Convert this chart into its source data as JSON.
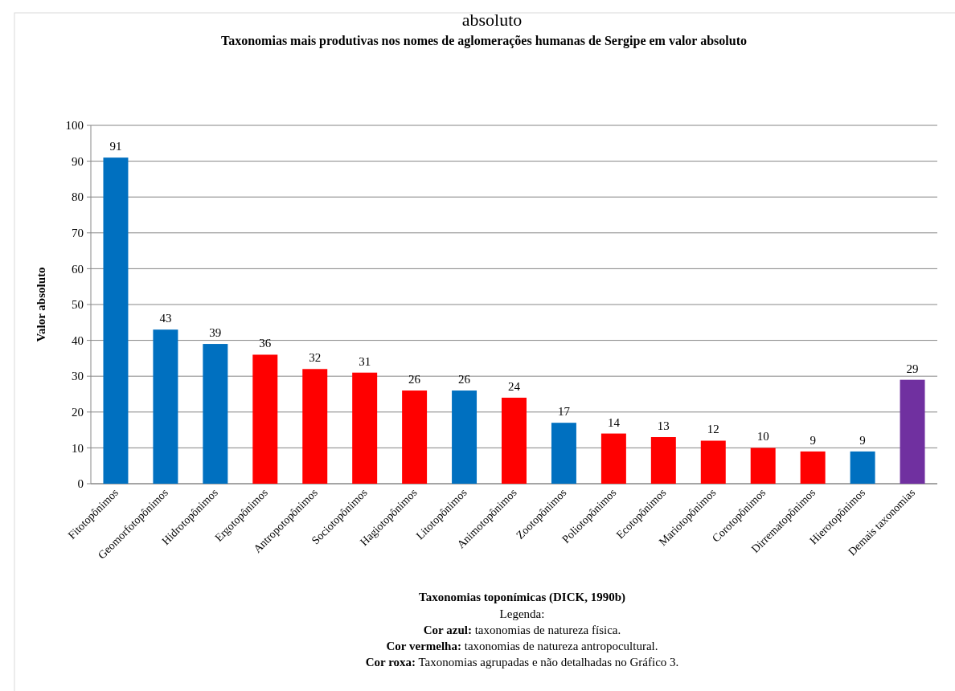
{
  "chart_data": {
    "type": "bar",
    "title": "Taxonomias mais produtivas nos nomes de aglomerações humanas de Sergipe em valor absoluto",
    "xlabel": "Taxonomias toponímicas (DICK, 1990b)",
    "ylabel": "Valor absoluto",
    "categories": [
      "Fitotopônimos",
      "Geomorfotopônimos",
      "Hidrotopônimos",
      "Ergotopônimos",
      "Antropotopônimos",
      "Sociotopônimos",
      "Hagiotopônimos",
      "Litotopônimos",
      "Animotopônimos",
      "Zootopônimos",
      "Poliotopônimos",
      "Ecotopônimos",
      "Mariotopônimos",
      "Corotopônimos",
      "Dirrematopônimos",
      "Hierotopônimos",
      "Demais taxonomias"
    ],
    "values": [
      91,
      43,
      39,
      36,
      32,
      31,
      26,
      26,
      24,
      17,
      14,
      13,
      12,
      10,
      9,
      9,
      29
    ],
    "colors": [
      "#0070c0",
      "#0070c0",
      "#0070c0",
      "#ff0000",
      "#ff0000",
      "#ff0000",
      "#ff0000",
      "#0070c0",
      "#ff0000",
      "#0070c0",
      "#ff0000",
      "#ff0000",
      "#ff0000",
      "#ff0000",
      "#ff0000",
      "#0070c0",
      "#7030a0"
    ],
    "ylim": [
      0,
      100
    ],
    "yticks": [
      0,
      10,
      20,
      30,
      40,
      50,
      60,
      70,
      80,
      90,
      100
    ],
    "grid": "y",
    "data_labels": true,
    "annotations": [
      "absoluto",
      "Legenda:",
      "Cor azul: taxonomias de natureza física.",
      "Cor vermelha: taxonomias de natureza antropocultural.",
      "Cor roxa: Taxonomias agrupadas e não detalhadas no Gráfico 3."
    ]
  }
}
